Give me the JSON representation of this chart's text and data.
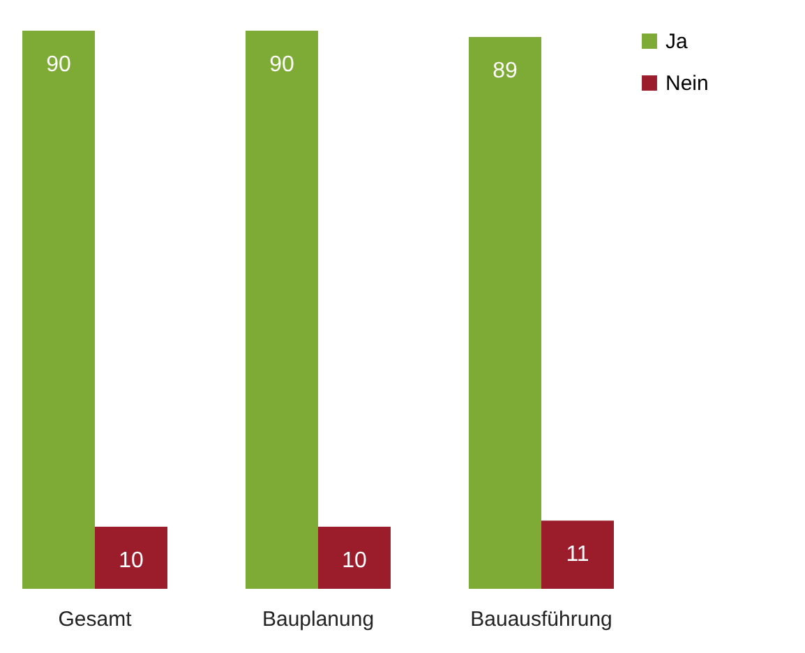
{
  "chart_data": {
    "type": "bar",
    "categories": [
      "Gesamt",
      "Bauplanung",
      "Bauausführung"
    ],
    "series": [
      {
        "name": "Ja",
        "color": "#7dab35",
        "values": [
          90,
          90,
          89
        ]
      },
      {
        "name": "Nein",
        "color": "#9b1c2a",
        "values": [
          10,
          10,
          11
        ]
      }
    ],
    "data_labels": true,
    "legend": "right",
    "grid": false
  }
}
